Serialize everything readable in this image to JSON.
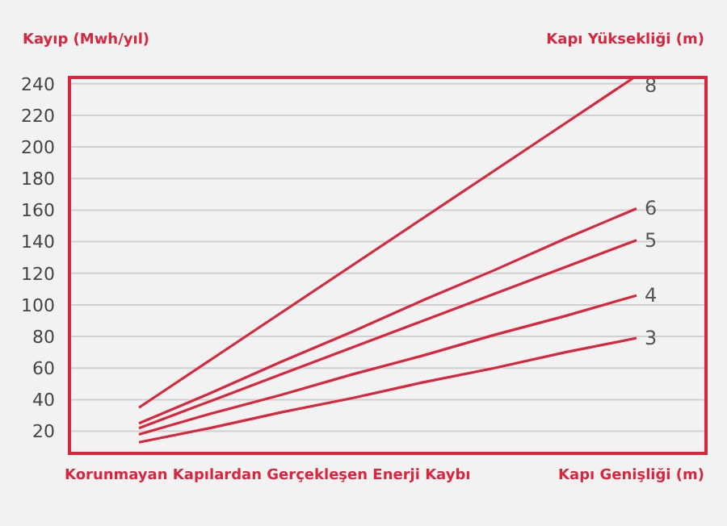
{
  "chart_data": {
    "type": "line",
    "title": "Korunmayan Kapılardan Gerçekleşen Enerji Kaybı",
    "ylabel": "Kayıp (Mwh/yıl)",
    "xlabel": "Kapı Genişliği (m)",
    "legend_title": "Kapı Yüksekliği (m)",
    "categories": [
      null,
      null,
      null,
      null,
      null,
      null,
      null,
      null
    ],
    "ylim": [
      6,
      245
    ],
    "yticks": [
      20,
      40,
      60,
      80,
      100,
      120,
      140,
      160,
      180,
      200,
      220,
      240
    ],
    "grid": true,
    "tick_labels": "y",
    "marker": "none",
    "line_style": "solid",
    "series": [
      {
        "name": "8",
        "color": "#d7263d",
        "values": [
          35,
          65,
          95,
          125,
          155,
          185,
          215,
          245
        ]
      },
      {
        "name": "6",
        "color": "#d7263d",
        "values": [
          25,
          44,
          64,
          83,
          103,
          122,
          142,
          161
        ]
      },
      {
        "name": "5",
        "color": "#d7263d",
        "values": [
          22,
          39,
          56,
          73,
          90,
          107,
          124,
          141
        ]
      },
      {
        "name": "4",
        "color": "#d7263d",
        "values": [
          18,
          31,
          43,
          56,
          68,
          81,
          93,
          106
        ]
      },
      {
        "name": "3",
        "color": "#d7263d",
        "values": [
          13,
          22,
          32,
          41,
          51,
          60,
          70,
          79
        ]
      }
    ]
  }
}
